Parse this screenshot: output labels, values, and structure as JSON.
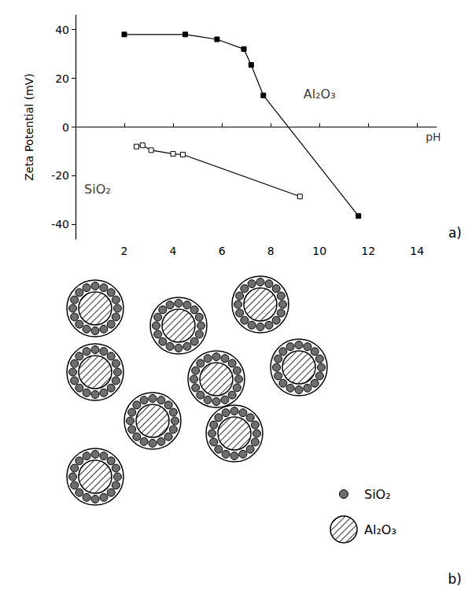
{
  "chart_data": {
    "type": "line",
    "panel_label": "a)",
    "x_label": "pH",
    "y_label": "Zeta Potential (mV)",
    "xlim": [
      0,
      14.8
    ],
    "xticks": [
      2,
      4,
      6,
      8,
      10,
      12,
      14
    ],
    "ylim": [
      -46,
      46
    ],
    "yticks": [
      -40,
      -20,
      0,
      20,
      40
    ],
    "grid": false,
    "series": [
      {
        "name": "Al₂O₃",
        "color": "#000000",
        "marker": "square",
        "x": [
          2,
          4.5,
          5.8,
          6.9,
          7.2,
          7.7,
          11.6
        ],
        "values": [
          38,
          38,
          36,
          32,
          25.5,
          13,
          -36.5
        ]
      },
      {
        "name": "SiO₂",
        "color": "#000000",
        "marker": "square-open",
        "x": [
          2.5,
          2.75,
          3.1,
          4.0,
          4.4,
          9.2
        ],
        "values": [
          -8,
          -7.5,
          -9.5,
          -11,
          -11.3,
          -28.5
        ]
      }
    ],
    "annotations": [
      {
        "text": "Al₂O₃",
        "x": 10.0,
        "y": 13.5
      },
      {
        "text": "SiO₂",
        "x": 0.9,
        "y": -25.5
      }
    ]
  },
  "diagram": {
    "panel_label": "b)",
    "legend": [
      {
        "label": "SiO₂",
        "shape": "dot"
      },
      {
        "label": "Al₂O₃",
        "shape": "hatched"
      }
    ]
  }
}
